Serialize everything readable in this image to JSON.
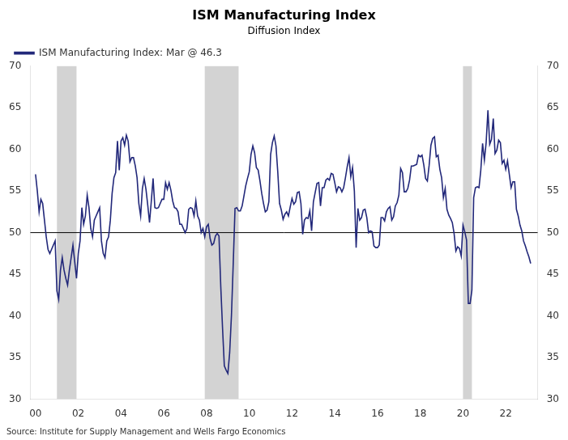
{
  "chart_data": {
    "type": "line",
    "title": "ISM Manufacturing Index",
    "subtitle": "Diffusion Index",
    "source": "Source: Institute for Supply Management and Wells Fargo Economics",
    "legend": "upper left",
    "grid": false,
    "x": [
      2000.0,
      2000.083,
      2000.167,
      2000.25,
      2000.333,
      2000.417,
      2000.5,
      2000.583,
      2000.667,
      2000.75,
      2000.833,
      2000.917,
      2001.0,
      2001.083,
      2001.167,
      2001.25,
      2001.333,
      2001.417,
      2001.5,
      2001.583,
      2001.667,
      2001.75,
      2001.833,
      2001.917,
      2002.0,
      2002.083,
      2002.167,
      2002.25,
      2002.333,
      2002.417,
      2002.5,
      2002.583,
      2002.667,
      2002.75,
      2002.833,
      2002.917,
      2003.0,
      2003.083,
      2003.167,
      2003.25,
      2003.333,
      2003.417,
      2003.5,
      2003.583,
      2003.667,
      2003.75,
      2003.833,
      2003.917,
      2004.0,
      2004.083,
      2004.167,
      2004.25,
      2004.333,
      2004.417,
      2004.5,
      2004.583,
      2004.667,
      2004.75,
      2004.833,
      2004.917,
      2005.0,
      2005.083,
      2005.167,
      2005.25,
      2005.333,
      2005.417,
      2005.5,
      2005.583,
      2005.667,
      2005.75,
      2005.833,
      2005.917,
      2006.0,
      2006.083,
      2006.167,
      2006.25,
      2006.333,
      2006.417,
      2006.5,
      2006.583,
      2006.667,
      2006.75,
      2006.833,
      2006.917,
      2007.0,
      2007.083,
      2007.167,
      2007.25,
      2007.333,
      2007.417,
      2007.5,
      2007.583,
      2007.667,
      2007.75,
      2007.833,
      2007.917,
      2008.0,
      2008.083,
      2008.167,
      2008.25,
      2008.333,
      2008.417,
      2008.5,
      2008.583,
      2008.667,
      2008.75,
      2008.833,
      2008.917,
      2009.0,
      2009.083,
      2009.167,
      2009.25,
      2009.333,
      2009.417,
      2009.5,
      2009.583,
      2009.667,
      2009.75,
      2009.833,
      2009.917,
      2010.0,
      2010.083,
      2010.167,
      2010.25,
      2010.333,
      2010.417,
      2010.5,
      2010.583,
      2010.667,
      2010.75,
      2010.833,
      2010.917,
      2011.0,
      2011.083,
      2011.167,
      2011.25,
      2011.333,
      2011.417,
      2011.5,
      2011.583,
      2011.667,
      2011.75,
      2011.833,
      2011.917,
      2012.0,
      2012.083,
      2012.167,
      2012.25,
      2012.333,
      2012.417,
      2012.5,
      2012.583,
      2012.667,
      2012.75,
      2012.833,
      2012.917,
      2013.0,
      2013.083,
      2013.167,
      2013.25,
      2013.333,
      2013.417,
      2013.5,
      2013.583,
      2013.667,
      2013.75,
      2013.833,
      2013.917,
      2014.0,
      2014.083,
      2014.167,
      2014.25,
      2014.333,
      2014.417,
      2014.5,
      2014.583,
      2014.667,
      2014.75,
      2014.833,
      2014.917,
      2015.0,
      2015.083,
      2015.167,
      2015.25,
      2015.333,
      2015.417,
      2015.5,
      2015.583,
      2015.667,
      2015.75,
      2015.833,
      2015.917,
      2016.0,
      2016.083,
      2016.167,
      2016.25,
      2016.333,
      2016.417,
      2016.5,
      2016.583,
      2016.667,
      2016.75,
      2016.833,
      2016.917,
      2017.0,
      2017.083,
      2017.167,
      2017.25,
      2017.333,
      2017.417,
      2017.5,
      2017.583,
      2017.667,
      2017.75,
      2017.833,
      2017.917,
      2018.0,
      2018.083,
      2018.167,
      2018.25,
      2018.333,
      2018.417,
      2018.5,
      2018.583,
      2018.667,
      2018.75,
      2018.833,
      2018.917,
      2019.0,
      2019.083,
      2019.167,
      2019.25,
      2019.333,
      2019.417,
      2019.5,
      2019.583,
      2019.667,
      2019.75,
      2019.833,
      2019.917,
      2020.0,
      2020.083,
      2020.167,
      2020.25,
      2020.333,
      2020.417,
      2020.5,
      2020.583,
      2020.667,
      2020.75,
      2020.833,
      2020.917,
      2021.0,
      2021.083,
      2021.167,
      2021.25,
      2021.333,
      2021.417,
      2021.5,
      2021.583,
      2021.667,
      2021.75,
      2021.833,
      2021.917,
      2022.0,
      2022.083,
      2022.167,
      2022.25,
      2022.333,
      2022.417,
      2022.5,
      2022.583,
      2022.667,
      2022.75,
      2022.833,
      2022.917,
      2023.0,
      2023.083,
      2023.167
    ],
    "series": [
      {
        "name": "ISM Manufacturing Index: Mar @ 46.3",
        "color": "#22287a",
        "values": [
          57.0,
          55.0,
          52.5,
          54.0,
          53.5,
          51.5,
          49.5,
          48.0,
          47.5,
          48.0,
          48.5,
          49.0,
          43.0,
          42.0,
          45.5,
          47.0,
          45.5,
          44.5,
          43.7,
          45.5,
          47.0,
          48.5,
          46.5,
          44.5,
          47.5,
          49.0,
          53.0,
          51.0,
          52.0,
          54.5,
          53.0,
          50.5,
          49.5,
          51.5,
          52.0,
          52.5,
          53.0,
          49.0,
          47.5,
          47.0,
          49.0,
          49.5,
          51.5,
          54.7,
          56.6,
          57.2,
          61.0,
          57.5,
          61.0,
          61.4,
          60.5,
          61.7,
          61.0,
          58.5,
          59.0,
          59.0,
          58.0,
          56.6,
          53.5,
          52.0,
          55.3,
          56.5,
          55.2,
          53.3,
          51.2,
          53.8,
          56.5,
          53.0,
          52.9,
          53.0,
          53.5,
          54.0,
          54.0,
          56.0,
          55.2,
          56.0,
          55.1,
          53.8,
          53.0,
          52.9,
          52.5,
          51.0,
          51.0,
          50.5,
          50.0,
          50.5,
          52.8,
          53.0,
          52.9,
          52.0,
          53.8,
          52.0,
          51.5,
          50.0,
          50.5,
          49.5,
          50.7,
          51.0,
          49.3,
          48.5,
          48.7,
          49.6,
          49.9,
          49.6,
          43.5,
          38.5,
          34.0,
          33.5,
          33.1,
          35.6,
          40.1,
          46.3,
          52.9,
          53.0,
          52.6,
          52.6,
          53.2,
          54.4,
          55.6,
          56.5,
          57.3,
          59.4,
          60.4,
          59.6,
          57.8,
          57.5,
          56.2,
          54.7,
          53.5,
          52.5,
          52.7,
          53.7,
          59.4,
          60.8,
          61.6,
          60.4,
          57.3,
          53.5,
          52.7,
          51.6,
          52.2,
          52.5,
          52.0,
          53.1,
          54.1,
          53.4,
          53.7,
          54.8,
          54.9,
          53.5,
          49.8,
          51.5,
          51.8,
          51.7,
          52.6,
          50.2,
          53.7,
          54.8,
          55.9,
          56.0,
          53.2,
          55.4,
          55.4,
          56.3,
          56.5,
          56.3,
          57.1,
          57.0,
          56.0,
          54.9,
          55.5,
          55.4,
          54.9,
          55.4,
          56.6,
          57.9,
          59.0,
          56.7,
          57.8,
          55.0,
          48.2,
          52.9,
          51.5,
          51.8,
          52.7,
          52.8,
          51.8,
          50.0,
          50.2,
          50.1,
          48.4,
          48.2,
          48.2,
          48.5,
          51.8,
          51.8,
          51.4,
          52.5,
          52.9,
          53.1,
          51.5,
          51.9,
          53.2,
          53.6,
          54.5,
          57.7,
          57.2,
          54.9,
          54.9,
          55.3,
          56.3,
          58.0,
          58.0,
          58.1,
          58.2,
          59.3,
          59.1,
          59.3,
          58.1,
          56.5,
          56.2,
          58.1,
          60.5,
          61.3,
          61.5,
          59.1,
          59.3,
          57.6,
          56.6,
          54.2,
          55.3,
          52.8,
          52.1,
          51.7,
          51.2,
          49.9,
          47.8,
          48.3,
          48.1,
          47.2,
          50.9,
          50.1,
          49.1,
          41.5,
          41.5,
          43.1,
          54.2,
          55.4,
          55.5,
          55.4,
          57.5,
          60.7,
          58.7,
          60.8,
          64.7,
          60.6,
          61.2,
          63.7,
          59.5,
          59.9,
          61.1,
          60.8,
          58.3,
          58.7,
          57.6,
          58.6,
          57.0,
          55.4,
          56.1,
          56.1,
          52.8,
          52.0,
          50.9,
          50.2,
          49.0,
          48.4,
          47.7,
          47.1,
          46.3
        ]
      }
    ],
    "bands": [
      [
        2001.0,
        2001.917
      ],
      [
        2007.917,
        2009.5
      ],
      [
        2020.0,
        2020.417
      ]
    ],
    "band_color": "#d3d3d3",
    "reference_lines": [
      50
    ],
    "xlim": [
      1999.75,
      2023.5
    ],
    "xticks": [
      {
        "value": 2000,
        "label": "00"
      },
      {
        "value": 2002,
        "label": "02"
      },
      {
        "value": 2004,
        "label": "04"
      },
      {
        "value": 2006,
        "label": "06"
      },
      {
        "value": 2008,
        "label": "08"
      },
      {
        "value": 2010,
        "label": "10"
      },
      {
        "value": 2012,
        "label": "12"
      },
      {
        "value": 2014,
        "label": "14"
      },
      {
        "value": 2016,
        "label": "16"
      },
      {
        "value": 2018,
        "label": "18"
      },
      {
        "value": 2020,
        "label": "20"
      },
      {
        "value": 2022,
        "label": "22"
      }
    ],
    "ylim": [
      30,
      70
    ],
    "yticks": [
      30,
      35,
      40,
      45,
      50,
      55,
      60,
      65,
      70
    ],
    "y2lim": [
      30,
      70
    ],
    "y2ticks": [
      30,
      35,
      40,
      45,
      50,
      55,
      60,
      65,
      70
    ]
  }
}
